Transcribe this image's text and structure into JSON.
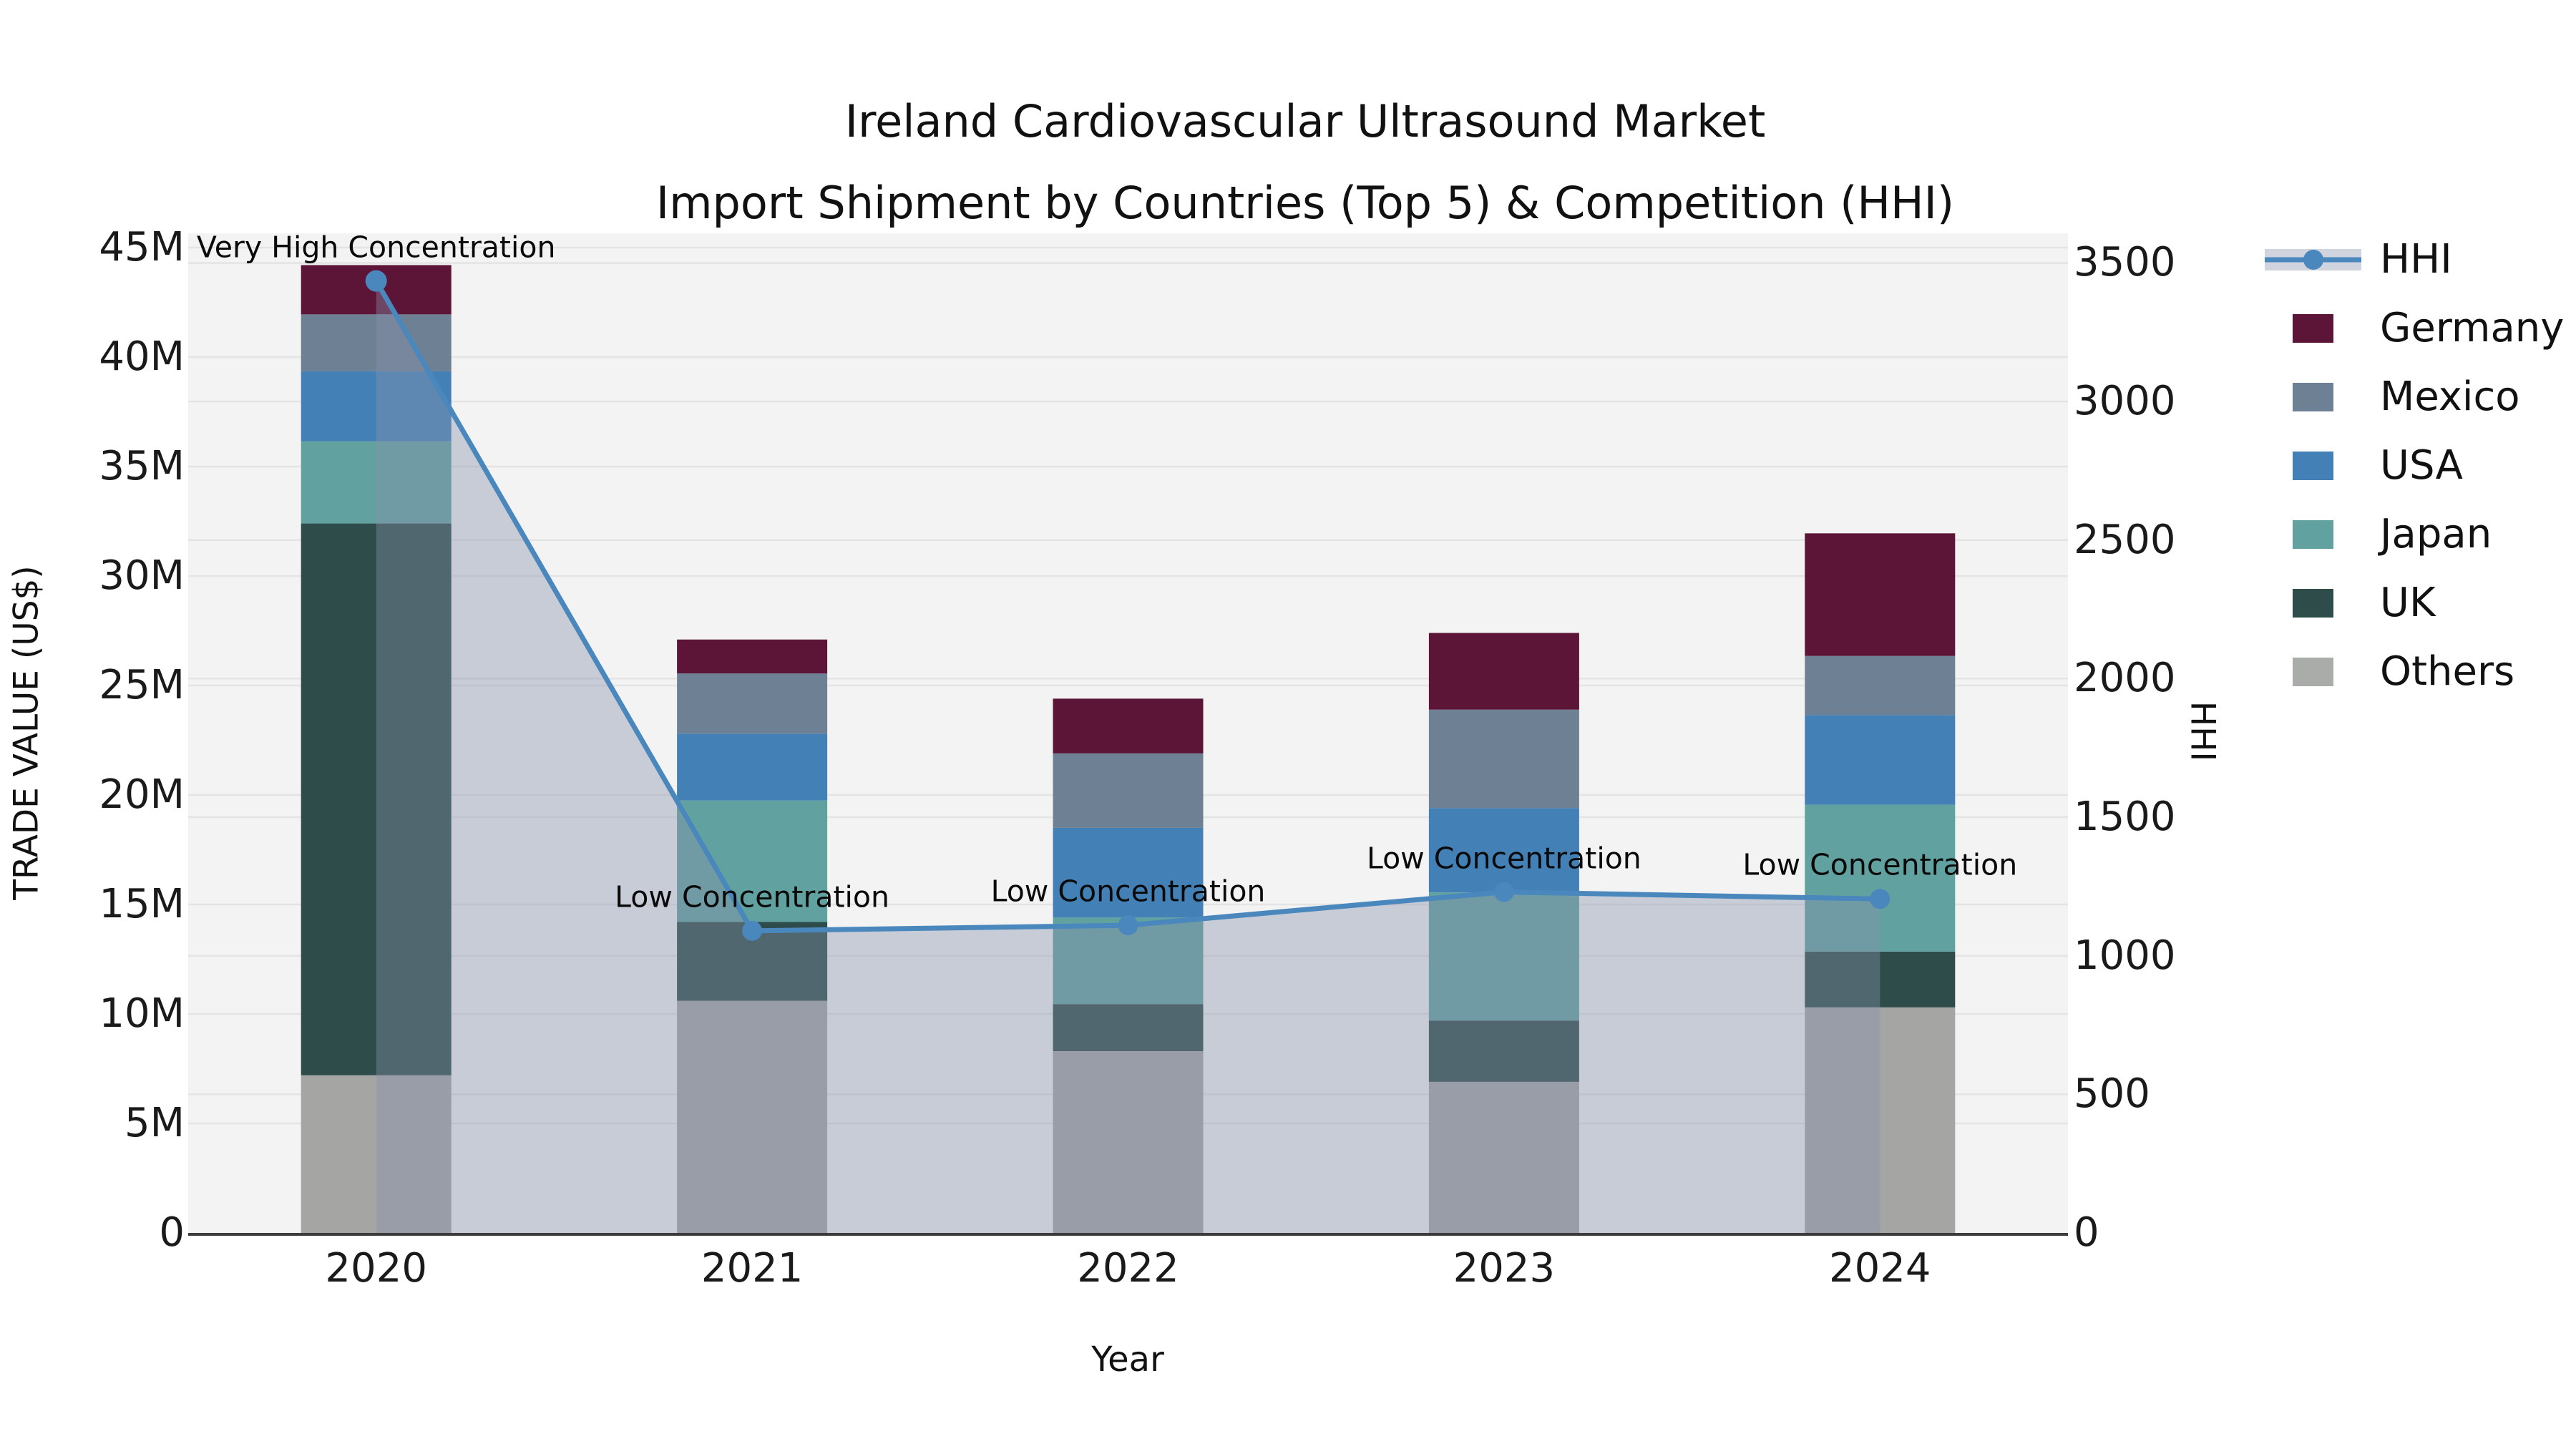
{
  "title": {
    "line1": "Ireland Cardiovascular Ultrasound Market",
    "line2": "Import Shipment by Countries (Top 5) & Competition (HHI)"
  },
  "colors": {
    "figure_bg": "#ffffff",
    "plot_bg": "#f3f3f3",
    "gridline": "#e4e4e4",
    "axis_line": "#3c3c3c",
    "tick_text": "#1a1a1a",
    "hhi_line": "#4a87bd",
    "hhi_area": "rgba(134,146,172,0.40)",
    "hhi_legend_band": "#d0d4de"
  },
  "legend": {
    "items": [
      {
        "label": "HHI",
        "type": "line"
      },
      {
        "label": "Germany",
        "type": "patch",
        "color": "#5d1537"
      },
      {
        "label": "Mexico",
        "type": "patch",
        "color": "#6e8093"
      },
      {
        "label": "USA",
        "type": "patch",
        "color": "#4380b6"
      },
      {
        "label": "Japan",
        "type": "patch",
        "color": "#61a2a1"
      },
      {
        "label": "UK",
        "type": "patch",
        "color": "#2e4c49"
      },
      {
        "label": "Others",
        "type": "patch",
        "color": "#aaaca9"
      }
    ]
  },
  "chart_data": {
    "type": "bar",
    "subtype": "stacked-bars-with-line-overlay",
    "title": "Ireland Cardiovascular Ultrasound Market — Import Shipment by Countries (Top 5) & Competition (HHI)",
    "categories": [
      "2020",
      "2021",
      "2022",
      "2023",
      "2024"
    ],
    "unit": "million US$",
    "series": [
      {
        "name": "Others",
        "color": "#a5a6a4",
        "values": [
          7.2,
          10.6,
          8.3,
          6.9,
          10.3
        ]
      },
      {
        "name": "UK",
        "color": "#2e4c49",
        "values": [
          25.2,
          3.6,
          2.15,
          2.8,
          2.55
        ]
      },
      {
        "name": "Japan",
        "color": "#61a2a1",
        "values": [
          3.75,
          5.55,
          3.95,
          5.85,
          6.7
        ]
      },
      {
        "name": "USA",
        "color": "#4380b6",
        "values": [
          3.2,
          3.05,
          4.1,
          3.85,
          4.1
        ]
      },
      {
        "name": "Mexico",
        "color": "#6e8093",
        "values": [
          2.6,
          2.75,
          3.4,
          4.5,
          2.7
        ]
      },
      {
        "name": "Germany",
        "color": "#5d1537",
        "values": [
          2.25,
          1.55,
          2.5,
          3.5,
          5.6
        ]
      }
    ],
    "line_series": {
      "name": "HHI",
      "axis": "right",
      "color": "#4a87bd",
      "area_fill": "rgba(134,146,172,0.40)",
      "values": [
        3435,
        1090,
        1110,
        1230,
        1205
      ]
    },
    "left_axis": {
      "label": "TRADE VALUE (US$)",
      "ticks": [
        {
          "label": "0",
          "value": 0
        },
        {
          "label": "5M",
          "value": 5
        },
        {
          "label": "10M",
          "value": 10
        },
        {
          "label": "15M",
          "value": 15
        },
        {
          "label": "20M",
          "value": 20
        },
        {
          "label": "25M",
          "value": 25
        },
        {
          "label": "30M",
          "value": 30
        },
        {
          "label": "35M",
          "value": 35
        },
        {
          "label": "40M",
          "value": 40
        },
        {
          "label": "45M",
          "value": 45
        }
      ],
      "range": [
        0,
        45.65
      ],
      "grid": true
    },
    "right_axis": {
      "label": "HHI",
      "ticks": [
        {
          "label": "0",
          "value": 0
        },
        {
          "label": "500",
          "value": 500
        },
        {
          "label": "1000",
          "value": 1000
        },
        {
          "label": "1500",
          "value": 1500
        },
        {
          "label": "2000",
          "value": 2000
        },
        {
          "label": "2500",
          "value": 2500
        },
        {
          "label": "3000",
          "value": 3000
        },
        {
          "label": "3500",
          "value": 3500
        }
      ],
      "range": [
        0,
        3607
      ],
      "grid": true
    },
    "x_axis": {
      "label": "Year"
    },
    "annotations": [
      {
        "category": "2020",
        "text": "Very High Concentration"
      },
      {
        "category": "2021",
        "text": "Low Concentration"
      },
      {
        "category": "2022",
        "text": "Low Concentration"
      },
      {
        "category": "2023",
        "text": "Low Concentration"
      },
      {
        "category": "2024",
        "text": "Low Concentration"
      }
    ],
    "legend_position": "upper-right-outside"
  }
}
